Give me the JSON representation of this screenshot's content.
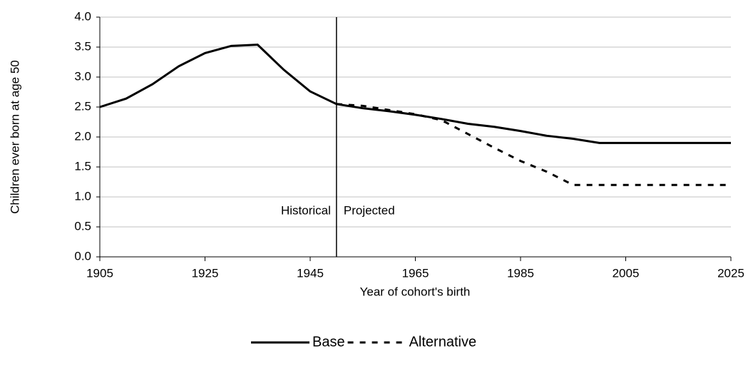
{
  "chart_data": {
    "type": "line",
    "x_label": "Year of cohort's birth",
    "y_label": "Children ever born at age 50",
    "x": [
      1905,
      1910,
      1915,
      1920,
      1925,
      1930,
      1935,
      1940,
      1945,
      1950,
      1955,
      1960,
      1965,
      1970,
      1975,
      1980,
      1985,
      1990,
      1995,
      2000,
      2005,
      2010,
      2015,
      2020,
      2025
    ],
    "series": [
      {
        "name": "Base",
        "color": "#000000",
        "dash": false,
        "values": [
          2.5,
          2.64,
          2.88,
          3.18,
          3.4,
          3.52,
          3.54,
          3.12,
          2.76,
          2.55,
          2.48,
          2.43,
          2.37,
          2.3,
          2.22,
          2.17,
          2.1,
          2.02,
          1.97,
          1.9,
          1.9,
          1.9,
          1.9,
          1.9,
          1.9
        ]
      },
      {
        "name": "Alternative",
        "color": "#000000",
        "dash": true,
        "values": [
          null,
          null,
          null,
          null,
          null,
          null,
          null,
          null,
          null,
          2.55,
          2.52,
          2.45,
          2.38,
          2.28,
          2.05,
          1.82,
          1.6,
          1.42,
          1.2,
          1.2,
          1.2,
          1.2,
          1.2,
          1.2,
          1.2
        ]
      }
    ],
    "divider": {
      "x": 1950,
      "left_label": "Historical",
      "right_label": "Projected"
    },
    "xlim": [
      1905,
      2025
    ],
    "xticks": [
      1905,
      1925,
      1945,
      1965,
      1985,
      2005,
      2025
    ],
    "ylim": [
      0,
      4
    ],
    "yticks": [
      {
        "value": 0,
        "label": "0.0"
      },
      {
        "value": 0.5,
        "label": "0.5"
      },
      {
        "value": 1,
        "label": "1.0"
      },
      {
        "value": 1.5,
        "label": "1.5"
      },
      {
        "value": 2,
        "label": "2.0"
      },
      {
        "value": 2.5,
        "label": "2.5"
      },
      {
        "value": 3,
        "label": "3.0"
      },
      {
        "value": 3.5,
        "label": "3.5"
      },
      {
        "value": 4,
        "label": "4.0"
      }
    ],
    "grid": true,
    "legend": "bottom"
  }
}
